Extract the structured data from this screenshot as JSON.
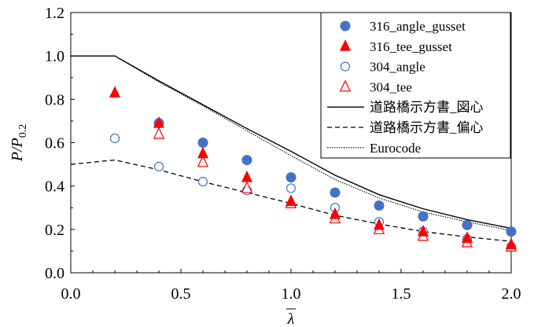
{
  "chart_data": {
    "type": "scatter",
    "xlabel": "λ",
    "ylabel": {
      "main": "P/P",
      "sub": "0.2"
    },
    "xlim": [
      0,
      2.0
    ],
    "ylim": [
      0,
      1.2
    ],
    "xticks": [
      "0.0",
      "0.5",
      "1.0",
      "1.5",
      "2.0"
    ],
    "yticks": [
      "0.0",
      "0.2",
      "0.4",
      "0.6",
      "0.8",
      "1.0",
      "1.2"
    ],
    "legend_position": "top-right",
    "grid": false,
    "colors": {
      "blue": "#4472C4",
      "red": "#FF0000",
      "line": "#000000"
    },
    "series": [
      {
        "name": "316_angle_gusset",
        "marker": "circle-filled",
        "x": [
          0.4,
          0.6,
          0.8,
          1.0,
          1.2,
          1.4,
          1.6,
          1.8,
          2.0
        ],
        "y": [
          0.69,
          0.6,
          0.52,
          0.44,
          0.37,
          0.31,
          0.26,
          0.22,
          0.19
        ]
      },
      {
        "name": "316_tee_gusset",
        "marker": "triangle-filled",
        "x": [
          0.2,
          0.4,
          0.6,
          0.8,
          1.0,
          1.2,
          1.4,
          1.6,
          1.8,
          2.0
        ],
        "y": [
          0.83,
          0.69,
          0.55,
          0.44,
          0.33,
          0.27,
          0.22,
          0.19,
          0.16,
          0.13
        ]
      },
      {
        "name": "304_angle",
        "marker": "circle-open",
        "x": [
          0.2,
          0.4,
          0.6,
          0.8,
          1.0,
          1.2,
          1.4,
          1.6,
          1.8,
          2.0
        ],
        "y": [
          0.62,
          0.49,
          0.42,
          0.38,
          0.39,
          0.3,
          0.235,
          0.19,
          0.155,
          0.12
        ]
      },
      {
        "name": "304_tee",
        "marker": "triangle-open",
        "x": [
          0.4,
          0.6,
          0.8,
          1.0,
          1.2,
          1.4,
          1.6,
          1.8,
          2.0
        ],
        "y": [
          0.64,
          0.51,
          0.39,
          0.32,
          0.25,
          0.2,
          0.17,
          0.14,
          0.12
        ]
      },
      {
        "name": "道路橋示方書_図心",
        "line": "solid",
        "x": [
          0.0,
          0.2,
          0.4,
          0.6,
          0.8,
          1.0,
          1.2,
          1.4,
          1.6,
          1.8,
          2.0
        ],
        "y": [
          1.0,
          1.0,
          0.885,
          0.775,
          0.665,
          0.56,
          0.45,
          0.36,
          0.295,
          0.245,
          0.205
        ]
      },
      {
        "name": "道路橋示方書_偏心",
        "line": "dashed",
        "x": [
          0.0,
          0.2,
          0.4,
          0.6,
          0.8,
          1.0,
          1.2,
          1.4,
          1.6,
          1.8,
          2.0
        ],
        "y": [
          0.5,
          0.52,
          0.475,
          0.42,
          0.37,
          0.32,
          0.265,
          0.225,
          0.19,
          0.165,
          0.145
        ]
      },
      {
        "name": "Eurocode",
        "line": "dotted",
        "x": [
          0.0,
          0.2,
          0.4,
          0.6,
          0.8,
          1.0,
          1.2,
          1.4,
          1.6,
          1.8,
          2.0
        ],
        "y": [
          1.0,
          1.0,
          0.88,
          0.77,
          0.655,
          0.54,
          0.43,
          0.345,
          0.28,
          0.235,
          0.195
        ]
      }
    ]
  }
}
